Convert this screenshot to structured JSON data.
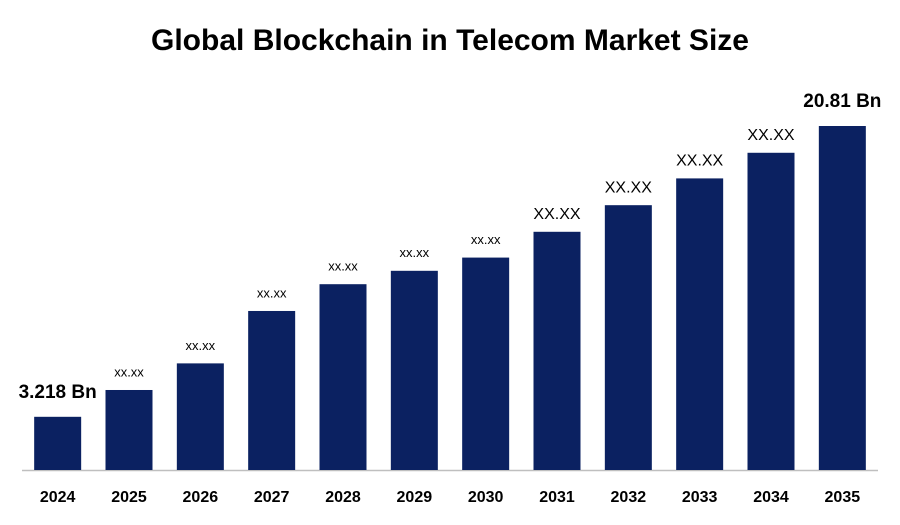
{
  "chart_data": {
    "type": "bar",
    "title": "Global Blockchain in Telecom Market Size",
    "categories": [
      "2024",
      "2025",
      "2026",
      "2027",
      "2028",
      "2029",
      "2030",
      "2031",
      "2032",
      "2033",
      "2034",
      "2035"
    ],
    "values": [
      3.218,
      4.84,
      6.45,
      9.62,
      11.24,
      12.05,
      12.85,
      14.41,
      16.02,
      17.64,
      19.19,
      20.81
    ],
    "value_labels": [
      "3.218 Bn",
      "xx.xx",
      "xx.xx",
      "xx.xx",
      "xx.xx",
      "xx.xx",
      "xx.xx",
      "XX.XX",
      "XX.XX",
      "XX.XX",
      "XX.XX",
      "20.81 Bn"
    ],
    "color": "#0b2161"
  }
}
